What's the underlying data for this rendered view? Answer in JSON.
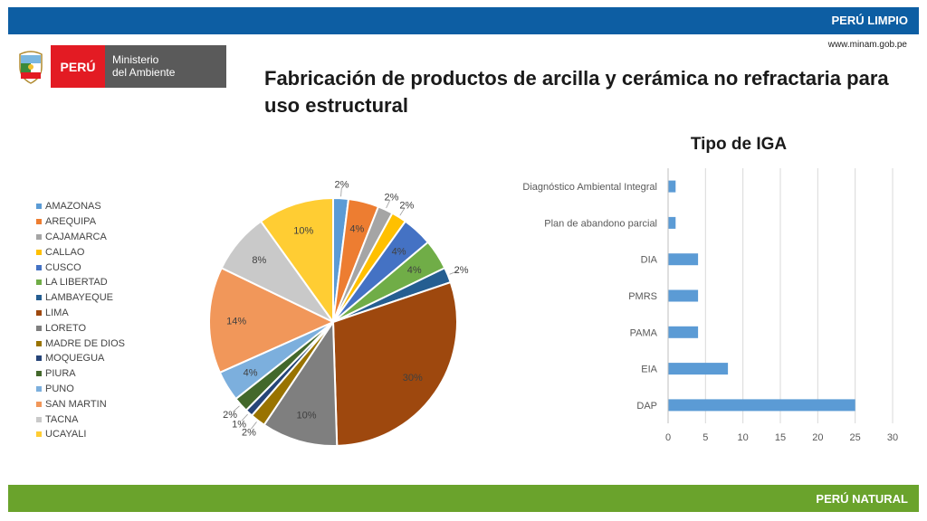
{
  "header": {
    "banner": "PERÚ LIMPIO",
    "url": "www.minam.gob.pe"
  },
  "footer": {
    "banner": "PERÚ NATURAL"
  },
  "logo": {
    "country": "PERÚ",
    "line1": "Ministerio",
    "line2": "del Ambiente"
  },
  "slide_title": "Fabricación de productos de arcilla y cerámica no refractaria para uso estructural",
  "chart_data": [
    {
      "type": "pie",
      "title": "",
      "legend_position": "left",
      "slices": [
        {
          "label": "AMAZONAS",
          "value": 2,
          "display": "2%",
          "color": "#5b9bd5"
        },
        {
          "label": "AREQUIPA",
          "value": 4,
          "display": "4%",
          "color": "#ed7d31"
        },
        {
          "label": "CAJAMARCA",
          "value": 2,
          "display": "2%",
          "color": "#a5a5a5"
        },
        {
          "label": "CALLAO",
          "value": 2,
          "display": "2%",
          "color": "#ffc000"
        },
        {
          "label": "CUSCO",
          "value": 4,
          "display": "4%",
          "color": "#4472c4"
        },
        {
          "label": "LA LIBERTAD",
          "value": 4,
          "display": "4%",
          "color": "#70ad47"
        },
        {
          "label": "LAMBAYEQUE",
          "value": 2,
          "display": "2%",
          "color": "#255e91"
        },
        {
          "label": "LIMA",
          "value": 30,
          "display": "30%",
          "color": "#9e480e"
        },
        {
          "label": "LORETO",
          "value": 10,
          "display": "10%",
          "color": "#7f7f7f"
        },
        {
          "label": "MADRE DE DIOS",
          "value": 2,
          "display": "2%",
          "color": "#997300"
        },
        {
          "label": "MOQUEGUA",
          "value": 1,
          "display": "1%",
          "color": "#264478"
        },
        {
          "label": "PIURA",
          "value": 2,
          "display": "2%",
          "color": "#43682b"
        },
        {
          "label": "PUNO",
          "value": 4,
          "display": "4%",
          "color": "#7cafdd"
        },
        {
          "label": "SAN MARTIN",
          "value": 14,
          "display": "14%",
          "color": "#f1975a"
        },
        {
          "label": "TACNA",
          "value": 8,
          "display": "8%",
          "color": "#c9c9c9"
        },
        {
          "label": "UCAYALI",
          "value": 10,
          "display": "10%",
          "color": "#ffcd33"
        }
      ]
    },
    {
      "type": "bar",
      "orientation": "horizontal",
      "title": "Tipo de IGA",
      "categories": [
        "Diagnóstico Ambiental Integral",
        "Plan de abandono parcial",
        "DIA",
        "PMRS",
        "PAMA",
        "EIA",
        "DAP"
      ],
      "values": [
        1,
        1,
        4,
        4,
        4,
        8,
        25
      ],
      "xlim": [
        0,
        30
      ],
      "xticks": [
        0,
        5,
        10,
        15,
        20,
        25,
        30
      ],
      "grid": true,
      "color": "#5b9bd5"
    }
  ]
}
